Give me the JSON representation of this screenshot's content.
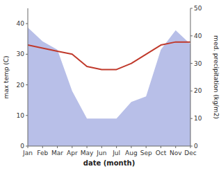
{
  "chart_data": {
    "type": "line",
    "xlabel": "date (month)",
    "ylabel": "max temp (C)",
    "y2label": "med. precipitation (kg/m2)",
    "categories": [
      "Jan",
      "Feb",
      "Mar",
      "Apr",
      "May",
      "Jun",
      "Jul",
      "Aug",
      "Sep",
      "Oct",
      "Nov",
      "Dec"
    ],
    "series": [
      {
        "type": "area",
        "axis": "y2",
        "color": "#b8bfe8",
        "values": [
          43,
          38,
          35,
          20,
          10,
          10,
          10,
          16,
          18,
          35,
          42,
          37
        ]
      },
      {
        "type": "line",
        "color": "#c0392b",
        "values": [
          33,
          32,
          31,
          30,
          26,
          25,
          25,
          27,
          30,
          33,
          34,
          34
        ]
      }
    ],
    "ylim": [
      0,
      45
    ],
    "yticks": [
      0,
      10,
      20,
      30,
      40
    ],
    "y2lim": [
      0,
      50
    ],
    "y2ticks": [
      0,
      10,
      20,
      30,
      40,
      50
    ],
    "grid": false
  }
}
